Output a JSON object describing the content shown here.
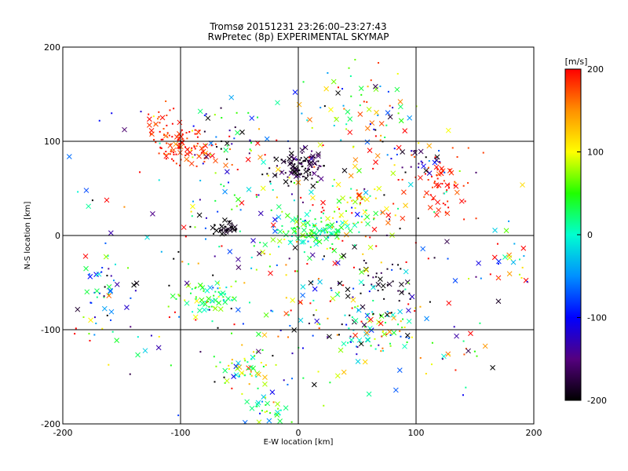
{
  "chart_data": {
    "type": "scatter",
    "title": "Tromsø 20151231 23:26:00–23:27:43",
    "subtitle": "RwPretec (8p) EXPERIMENTAL SKYMAP",
    "xlabel": "E-W location [km]",
    "ylabel": "N-S location [km]",
    "xlim": [
      -200,
      200
    ],
    "ylim": [
      -200,
      200
    ],
    "x_ticks": [
      "-200",
      "-100",
      "0",
      "100",
      "200"
    ],
    "y_ticks": [
      "-200",
      "-100",
      "0",
      "100",
      "200"
    ],
    "grid": true,
    "colorbar": {
      "label": "[m/s]",
      "range": [
        -200,
        200
      ],
      "ticks": [
        "200",
        "100",
        "0",
        "-100",
        "-200"
      ],
      "colormap": "black-purple-blue-cyan-green-yellow-red"
    },
    "clusters": [
      {
        "x": -100,
        "y": 95,
        "sx": 10,
        "sy": 10,
        "n": 70,
        "v": 190,
        "vs": 15
      },
      {
        "x": -118,
        "y": 120,
        "sx": 8,
        "sy": 10,
        "n": 25,
        "v": 180,
        "vs": 20
      },
      {
        "x": -78,
        "y": 85,
        "sx": 8,
        "sy": 5,
        "n": 20,
        "v": 170,
        "vs": 25
      },
      {
        "x": -60,
        "y": 95,
        "sx": 22,
        "sy": 18,
        "n": 40,
        "v": 0,
        "vs": 150
      },
      {
        "x": 0,
        "y": 72,
        "sx": 12,
        "sy": 8,
        "n": 110,
        "v": -185,
        "vs": 20
      },
      {
        "x": -62,
        "y": 8,
        "sx": 6,
        "sy": 3,
        "n": 35,
        "v": -195,
        "vs": 8
      },
      {
        "x": 10,
        "y": 5,
        "sx": 20,
        "sy": 10,
        "n": 110,
        "v": 30,
        "vs": 25
      },
      {
        "x": 50,
        "y": 28,
        "sx": 20,
        "sy": 15,
        "n": 60,
        "v": 120,
        "vs": 80
      },
      {
        "x": 60,
        "y": 130,
        "sx": 25,
        "sy": 25,
        "n": 60,
        "v": 60,
        "vs": 120
      },
      {
        "x": 120,
        "y": 50,
        "sx": 15,
        "sy": 20,
        "n": 70,
        "v": 190,
        "vs": 15
      },
      {
        "x": 105,
        "y": 78,
        "sx": 12,
        "sy": 8,
        "n": 25,
        "v": -150,
        "vs": 40
      },
      {
        "x": -75,
        "y": -65,
        "sx": 12,
        "sy": 10,
        "n": 70,
        "v": 30,
        "vs": 50
      },
      {
        "x": -45,
        "y": -140,
        "sx": 10,
        "sy": 15,
        "n": 50,
        "v": 60,
        "vs": 60
      },
      {
        "x": -25,
        "y": -185,
        "sx": 10,
        "sy": 10,
        "n": 30,
        "v": 40,
        "vs": 60
      },
      {
        "x": 60,
        "y": -100,
        "sx": 18,
        "sy": 15,
        "n": 80,
        "v": 0,
        "vs": 100
      },
      {
        "x": 70,
        "y": -55,
        "sx": 15,
        "sy": 15,
        "n": 40,
        "v": -190,
        "vs": 15
      },
      {
        "x": -165,
        "y": -50,
        "sx": 12,
        "sy": 20,
        "n": 40,
        "v": -60,
        "vs": 90
      },
      {
        "x": 175,
        "y": -30,
        "sx": 15,
        "sy": 12,
        "n": 25,
        "v": 10,
        "vs": 130
      },
      {
        "x": 0,
        "y": -60,
        "sx": 60,
        "sy": 60,
        "n": 160,
        "v": 0,
        "vs": 150
      },
      {
        "x": 0,
        "y": 40,
        "sx": 90,
        "sy": 70,
        "n": 200,
        "v": 0,
        "vs": 150
      },
      {
        "x": 130,
        "y": -120,
        "sx": 20,
        "sy": 25,
        "n": 25,
        "v": 0,
        "vs": 150
      },
      {
        "x": -140,
        "y": -100,
        "sx": 25,
        "sy": 25,
        "n": 25,
        "v": 0,
        "vs": 150
      }
    ]
  }
}
